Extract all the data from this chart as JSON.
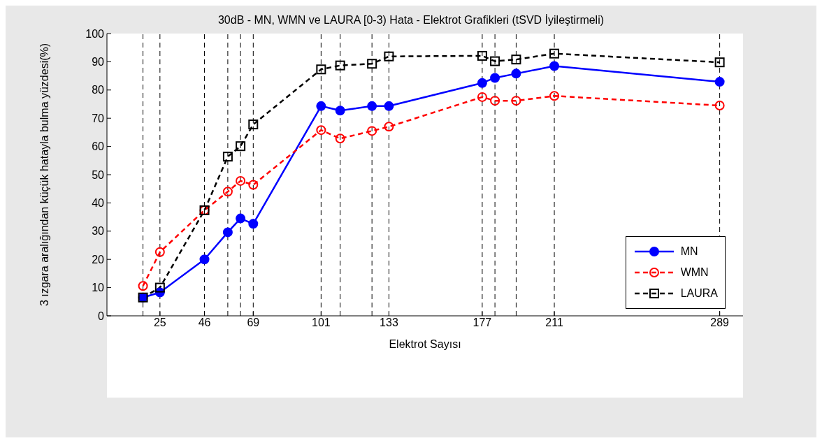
{
  "chart_data": {
    "type": "line",
    "title": "30dB - MN, WMN ve LAURA [0-3) Hata - Elektrot Grafikleri (tSVD İyileştirmeli)",
    "xlabel": "Elektrot Sayısı",
    "ylabel": "3 ızgara aralığından küçük hatayla bulma yüzdesi(%)",
    "x": [
      17,
      25,
      46,
      57,
      63,
      69,
      101,
      110,
      125,
      133,
      177,
      183,
      193,
      211,
      289
    ],
    "series": [
      {
        "name": "MN",
        "color": "#0000ff",
        "marker": "circle",
        "line_style": "solid",
        "values": [
          6.5,
          8.3,
          20,
          29.6,
          34.5,
          32.6,
          74.3,
          72.7,
          74.3,
          74.3,
          82.5,
          84.3,
          85.8,
          88.5,
          82.9
        ]
      },
      {
        "name": "WMN",
        "color": "#ff0000",
        "marker": "circle",
        "line_style": "dashed",
        "values": [
          10.6,
          22.6,
          37.4,
          44,
          47.8,
          46.4,
          65.8,
          62.8,
          65.5,
          67,
          77.5,
          76.2,
          76.2,
          77.9,
          74.5
        ]
      },
      {
        "name": "LAURA",
        "color": "#000000",
        "marker": "square",
        "line_style": "dashed",
        "values": [
          6.5,
          10,
          37.4,
          56.4,
          60.1,
          67.8,
          87.3,
          88.7,
          89.3,
          91.9,
          92.1,
          90.2,
          90.8,
          92.9,
          89.8
        ]
      }
    ],
    "xlim": [
      0,
      300
    ],
    "xticks": [
      25,
      46,
      69,
      101,
      133,
      177,
      211,
      289
    ],
    "ylim": [
      0,
      100
    ],
    "yticks": [
      0,
      10,
      20,
      30,
      40,
      50,
      60,
      70,
      80,
      90,
      100
    ],
    "ref_lines": [
      {
        "axis": "x",
        "value": 17,
        "color": "#000000",
        "line_style": "dashed"
      },
      {
        "axis": "x",
        "value": 25,
        "color": "#000000",
        "line_style": "dashed"
      },
      {
        "axis": "x",
        "value": 46,
        "color": "#000000",
        "line_style": "dashed"
      },
      {
        "axis": "x",
        "value": 57,
        "color": "#000000",
        "line_style": "dashed"
      },
      {
        "axis": "x",
        "value": 63,
        "color": "#000000",
        "line_style": "dashed"
      },
      {
        "axis": "x",
        "value": 69,
        "color": "#000000",
        "line_style": "dashed"
      },
      {
        "axis": "x",
        "value": 101,
        "color": "#000000",
        "line_style": "dashed"
      },
      {
        "axis": "x",
        "value": 110,
        "color": "#000000",
        "line_style": "dashed"
      },
      {
        "axis": "x",
        "value": 125,
        "color": "#000000",
        "line_style": "dashed"
      },
      {
        "axis": "x",
        "value": 133,
        "color": "#000000",
        "line_style": "dashed"
      },
      {
        "axis": "x",
        "value": 177,
        "color": "#000000",
        "line_style": "dashed"
      },
      {
        "axis": "x",
        "value": 183,
        "color": "#000000",
        "line_style": "dashed"
      },
      {
        "axis": "x",
        "value": 193,
        "color": "#000000",
        "line_style": "dashed"
      },
      {
        "axis": "x",
        "value": 211,
        "color": "#000000",
        "line_style": "dashed"
      },
      {
        "axis": "x",
        "value": 289,
        "color": "#000000",
        "line_style": "dashed"
      }
    ],
    "grid": false,
    "legend": "right"
  }
}
